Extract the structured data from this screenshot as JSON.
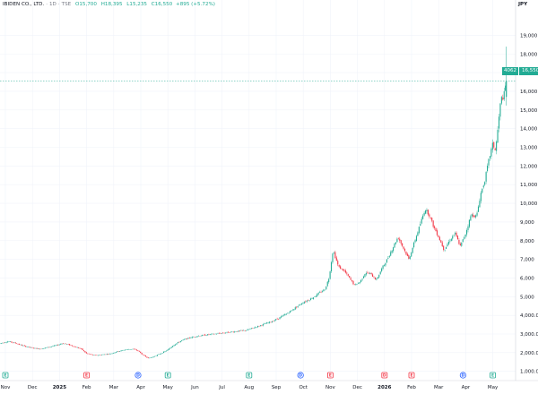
{
  "header": {
    "symbol": "IBIDEN CO., LTD.",
    "interval": "1D",
    "exchange": "TSE",
    "open": "O15,700",
    "high": "H18,395",
    "low": "L15,235",
    "close": "C16,550",
    "change": "+895 (+5.72%)"
  },
  "currency": "JPY",
  "price_tag": {
    "symbol": "4062",
    "value": "16,550"
  },
  "colors": {
    "up": "#22ab94",
    "down": "#f23645",
    "grid": "#f0f3fa",
    "line": "#d1d4dc",
    "dividend": "#2962ff",
    "earnings": "#f23645",
    "events_green": "#22ab94"
  },
  "chart_data": {
    "type": "candlestick",
    "ylim": [
      0,
      19000
    ],
    "y_ticks": [
      1000,
      2000,
      3000,
      4000,
      5000,
      6000,
      7000,
      8000,
      9000,
      10000,
      11000,
      12000,
      13000,
      14000,
      15000,
      16000,
      17000,
      18000,
      19000
    ],
    "y_tick_labels": [
      "1,000.0",
      "2,000.0",
      "3,000.0",
      "4,000.0",
      "5,000",
      "6,000",
      "7,000",
      "8,000",
      "9,000",
      "10,000",
      "11,000",
      "12,000",
      "13,000",
      "14,000",
      "15,000",
      "16,000",
      "17,000",
      "18,000",
      "19,000"
    ],
    "x_ticks": [
      {
        "label": "Nov",
        "month_index": 0,
        "year": false
      },
      {
        "label": "Dec",
        "month_index": 1,
        "year": false
      },
      {
        "label": "2025",
        "month_index": 2,
        "year": true
      },
      {
        "label": "Feb",
        "month_index": 3,
        "year": false
      },
      {
        "label": "Mar",
        "month_index": 4,
        "year": false
      },
      {
        "label": "Apr",
        "month_index": 5,
        "year": false
      },
      {
        "label": "May",
        "month_index": 6,
        "year": false
      },
      {
        "label": "Jun",
        "month_index": 7,
        "year": false
      },
      {
        "label": "Jul",
        "month_index": 8,
        "year": false
      },
      {
        "label": "Aug",
        "month_index": 9,
        "year": false
      },
      {
        "label": "Sep",
        "month_index": 10,
        "year": false
      },
      {
        "label": "Oct",
        "month_index": 11,
        "year": false
      },
      {
        "label": "Nov",
        "month_index": 12,
        "year": false
      },
      {
        "label": "Dec",
        "month_index": 13,
        "year": false
      },
      {
        "label": "2026",
        "month_index": 14,
        "year": true
      },
      {
        "label": "Feb",
        "month_index": 15,
        "year": false
      },
      {
        "label": "Mar",
        "month_index": 16,
        "year": false
      },
      {
        "label": "Apr",
        "month_index": 17,
        "year": false
      },
      {
        "label": "May",
        "month_index": 18,
        "year": false
      }
    ],
    "last_close": 16550,
    "price_path": [
      [
        -0.2,
        2500
      ],
      [
        0.1,
        2600
      ],
      [
        0.4,
        2500
      ],
      [
        0.7,
        2350
      ],
      [
        1.0,
        2250
      ],
      [
        1.3,
        2200
      ],
      [
        1.6,
        2300
      ],
      [
        1.9,
        2400
      ],
      [
        2.1,
        2500
      ],
      [
        2.3,
        2450
      ],
      [
        2.6,
        2300
      ],
      [
        2.8,
        2200
      ],
      [
        3.0,
        1950
      ],
      [
        3.3,
        1850
      ],
      [
        3.6,
        1900
      ],
      [
        3.9,
        1950
      ],
      [
        4.1,
        2050
      ],
      [
        4.4,
        2150
      ],
      [
        4.7,
        2200
      ],
      [
        4.9,
        2100
      ],
      [
        5.1,
        1850
      ],
      [
        5.3,
        1700
      ],
      [
        5.5,
        1800
      ],
      [
        5.8,
        2000
      ],
      [
        6.0,
        2150
      ],
      [
        6.2,
        2400
      ],
      [
        6.5,
        2650
      ],
      [
        6.8,
        2800
      ],
      [
        7.1,
        2900
      ],
      [
        7.4,
        2950
      ],
      [
        7.7,
        3000
      ],
      [
        8.0,
        3050
      ],
      [
        8.3,
        3100
      ],
      [
        8.6,
        3150
      ],
      [
        8.9,
        3200
      ],
      [
        9.2,
        3350
      ],
      [
        9.5,
        3500
      ],
      [
        9.8,
        3650
      ],
      [
        10.1,
        3850
      ],
      [
        10.4,
        4100
      ],
      [
        10.7,
        4400
      ],
      [
        11.0,
        4700
      ],
      [
        11.3,
        4900
      ],
      [
        11.6,
        5200
      ],
      [
        11.8,
        5400
      ],
      [
        11.95,
        6000
      ],
      [
        12.1,
        7500
      ],
      [
        12.3,
        6600
      ],
      [
        12.5,
        6400
      ],
      [
        12.7,
        6000
      ],
      [
        12.9,
        5600
      ],
      [
        13.1,
        5800
      ],
      [
        13.3,
        6300
      ],
      [
        13.5,
        6200
      ],
      [
        13.7,
        5900
      ],
      [
        13.9,
        6500
      ],
      [
        14.1,
        7000
      ],
      [
        14.3,
        7600
      ],
      [
        14.5,
        8200
      ],
      [
        14.7,
        7600
      ],
      [
        14.9,
        7000
      ],
      [
        15.1,
        7900
      ],
      [
        15.3,
        8800
      ],
      [
        15.5,
        9700
      ],
      [
        15.65,
        9400
      ],
      [
        15.8,
        8800
      ],
      [
        16.0,
        8200
      ],
      [
        16.2,
        7500
      ],
      [
        16.4,
        8000
      ],
      [
        16.6,
        8400
      ],
      [
        16.8,
        7700
      ],
      [
        17.0,
        8400
      ],
      [
        17.2,
        9400
      ],
      [
        17.4,
        9300
      ],
      [
        17.55,
        10500
      ],
      [
        17.7,
        11200
      ],
      [
        17.85,
        12300
      ],
      [
        18.0,
        13200
      ],
      [
        18.1,
        12800
      ],
      [
        18.2,
        14200
      ],
      [
        18.3,
        15600
      ],
      [
        18.4,
        15700
      ],
      [
        18.5,
        16550
      ]
    ],
    "events": [
      {
        "letter": "E",
        "kind": "earnings_green",
        "month_index": 0.0
      },
      {
        "letter": "E",
        "kind": "earnings_red",
        "month_index": 3.0
      },
      {
        "letter": "D",
        "kind": "dividend",
        "month_index": 4.9
      },
      {
        "letter": "E",
        "kind": "earnings_green",
        "month_index": 6.0
      },
      {
        "letter": "E",
        "kind": "earnings_green",
        "month_index": 9.0
      },
      {
        "letter": "D",
        "kind": "dividend",
        "month_index": 10.9
      },
      {
        "letter": "E",
        "kind": "earnings_red",
        "month_index": 12.0
      },
      {
        "letter": "D",
        "kind": "earnings_red",
        "month_index": 14.0
      },
      {
        "letter": "E",
        "kind": "earnings_red",
        "month_index": 15.0
      },
      {
        "letter": "D",
        "kind": "dividend",
        "month_index": 16.9
      },
      {
        "letter": "E",
        "kind": "earnings_green",
        "month_index": 18.0
      }
    ]
  }
}
